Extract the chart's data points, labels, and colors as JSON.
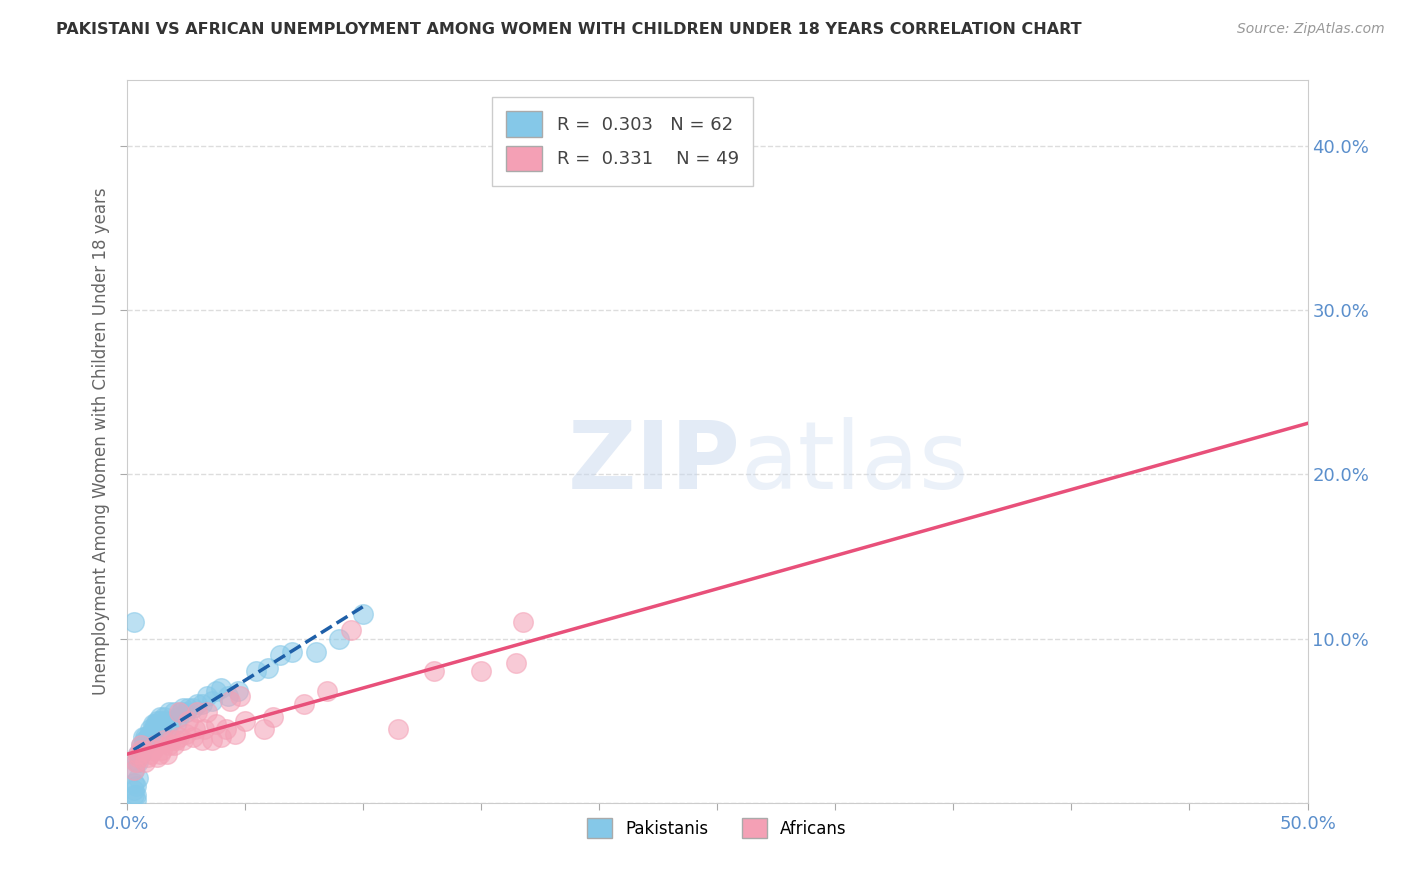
{
  "title": "PAKISTANI VS AFRICAN UNEMPLOYMENT AMONG WOMEN WITH CHILDREN UNDER 18 YEARS CORRELATION CHART",
  "source": "Source: ZipAtlas.com",
  "ylabel": "Unemployment Among Women with Children Under 18 years",
  "xlim": [
    0.0,
    0.5
  ],
  "ylim": [
    0.0,
    0.44
  ],
  "xtick_vals": [
    0.0,
    0.05,
    0.1,
    0.15,
    0.2,
    0.25,
    0.3,
    0.35,
    0.4,
    0.45,
    0.5
  ],
  "ytick_vals": [
    0.0,
    0.1,
    0.2,
    0.3,
    0.4
  ],
  "xtick_labels": [
    "0.0%",
    "",
    "",
    "",
    "",
    "",
    "",
    "",
    "",
    "",
    "50.0%"
  ],
  "ytick_labels_left": [
    "",
    "",
    "",
    "",
    ""
  ],
  "ytick_labels_right": [
    "",
    "10.0%",
    "20.0%",
    "30.0%",
    "40.0%"
  ],
  "pakistani_color": "#85C8E8",
  "african_color": "#F4A0B5",
  "trend_pakistani_color": "#1E5FA8",
  "trend_african_color": "#E8507A",
  "R_pakistani": 0.303,
  "N_pakistani": 62,
  "R_african": 0.331,
  "N_african": 49,
  "pakistani_x": [
    0.003,
    0.004,
    0.005,
    0.005,
    0.006,
    0.006,
    0.007,
    0.007,
    0.008,
    0.008,
    0.008,
    0.009,
    0.009,
    0.01,
    0.01,
    0.01,
    0.011,
    0.011,
    0.012,
    0.012,
    0.013,
    0.013,
    0.014,
    0.014,
    0.015,
    0.015,
    0.016,
    0.016,
    0.017,
    0.018,
    0.019,
    0.02,
    0.021,
    0.022,
    0.023,
    0.024,
    0.025,
    0.026,
    0.028,
    0.03,
    0.032,
    0.034,
    0.036,
    0.038,
    0.04,
    0.043,
    0.047,
    0.055,
    0.06,
    0.065,
    0.07,
    0.08,
    0.09,
    0.1,
    0.003,
    0.004,
    0.005,
    0.003,
    0.004,
    0.003,
    0.003,
    0.004
  ],
  "pakistani_y": [
    0.02,
    0.025,
    0.025,
    0.03,
    0.03,
    0.035,
    0.035,
    0.04,
    0.04,
    0.038,
    0.035,
    0.038,
    0.04,
    0.04,
    0.042,
    0.045,
    0.045,
    0.048,
    0.048,
    0.045,
    0.048,
    0.05,
    0.05,
    0.052,
    0.042,
    0.048,
    0.05,
    0.052,
    0.045,
    0.055,
    0.05,
    0.055,
    0.048,
    0.052,
    0.055,
    0.058,
    0.055,
    0.058,
    0.058,
    0.06,
    0.06,
    0.065,
    0.062,
    0.068,
    0.07,
    0.065,
    0.068,
    0.08,
    0.082,
    0.09,
    0.092,
    0.092,
    0.1,
    0.115,
    0.11,
    0.01,
    0.015,
    0.005,
    0.005,
    0.008,
    0.012,
    0.002
  ],
  "african_x": [
    0.003,
    0.004,
    0.005,
    0.005,
    0.006,
    0.006,
    0.008,
    0.009,
    0.01,
    0.011,
    0.012,
    0.013,
    0.014,
    0.015,
    0.016,
    0.017,
    0.018,
    0.019,
    0.02,
    0.021,
    0.022,
    0.022,
    0.024,
    0.025,
    0.026,
    0.028,
    0.029,
    0.03,
    0.032,
    0.033,
    0.034,
    0.036,
    0.038,
    0.04,
    0.042,
    0.044,
    0.046,
    0.048,
    0.05,
    0.058,
    0.062,
    0.075,
    0.085,
    0.095,
    0.115,
    0.13,
    0.15,
    0.165,
    0.168
  ],
  "african_y": [
    0.02,
    0.025,
    0.028,
    0.03,
    0.032,
    0.035,
    0.025,
    0.028,
    0.03,
    0.032,
    0.035,
    0.028,
    0.03,
    0.032,
    0.038,
    0.03,
    0.035,
    0.038,
    0.035,
    0.038,
    0.04,
    0.055,
    0.038,
    0.042,
    0.05,
    0.04,
    0.045,
    0.055,
    0.038,
    0.045,
    0.055,
    0.038,
    0.048,
    0.04,
    0.045,
    0.062,
    0.042,
    0.065,
    0.05,
    0.045,
    0.052,
    0.06,
    0.068,
    0.105,
    0.045,
    0.08,
    0.08,
    0.085,
    0.11
  ],
  "watermark_zip": "ZIP",
  "watermark_atlas": "atlas",
  "background_color": "#FFFFFF",
  "grid_color": "#DDDDDD"
}
